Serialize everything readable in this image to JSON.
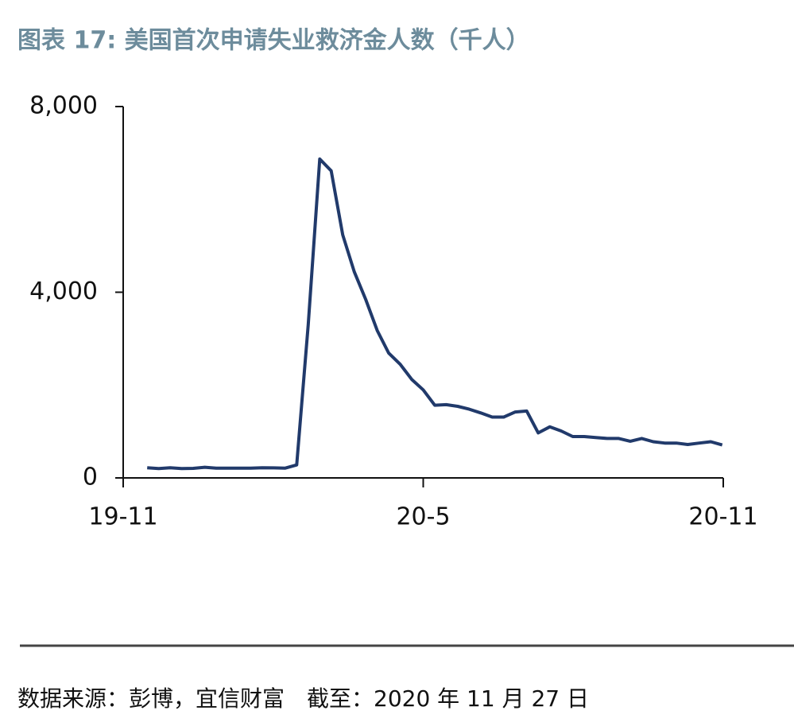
{
  "chart_data": {
    "type": "line",
    "title": "图表 17: 美国首次申请失业救济金人数（千人）",
    "source": "数据来源：彭博，宜信财富　截至：2020 年 11 月 27 日",
    "x": [
      0.48,
      0.71,
      0.94,
      1.17,
      1.4,
      1.63,
      1.86,
      2.09,
      2.32,
      2.55,
      2.78,
      3.01,
      3.24,
      3.47,
      3.7,
      3.93,
      4.16,
      4.39,
      4.62,
      4.85,
      5.08,
      5.31,
      5.54,
      5.77,
      6.0,
      6.23,
      6.46,
      6.69,
      6.92,
      7.15,
      7.38,
      7.61,
      7.84,
      8.07,
      8.3,
      8.53,
      8.76,
      8.99,
      9.22,
      9.45,
      9.68,
      9.91,
      10.14,
      10.37,
      10.6,
      10.83,
      11.06,
      11.29,
      11.52,
      11.75,
      11.98
    ],
    "values": [
      220,
      200,
      220,
      200,
      205,
      230,
      210,
      210,
      210,
      210,
      220,
      215,
      210,
      280,
      3300,
      6870,
      6615,
      5237,
      4442,
      3846,
      3176,
      2687,
      2446,
      2123,
      1897,
      1566,
      1577,
      1542,
      1480,
      1400,
      1310,
      1310,
      1420,
      1440,
      970,
      1100,
      1010,
      890,
      890,
      870,
      850,
      850,
      790,
      850,
      780,
      750,
      750,
      720,
      750,
      780,
      710
    ],
    "color": "#213a6b",
    "xlim": [
      0,
      12
    ],
    "xticks": [
      {
        "value": 0,
        "label": "19-11"
      },
      {
        "value": 6,
        "label": "20-5"
      },
      {
        "value": 12,
        "label": "20-11"
      }
    ],
    "ylim": [
      0,
      8000
    ],
    "yticks": [
      {
        "value": 0,
        "label": "0"
      },
      {
        "value": 4000,
        "label": "4,000"
      },
      {
        "value": 8000,
        "label": "8,000"
      }
    ]
  }
}
